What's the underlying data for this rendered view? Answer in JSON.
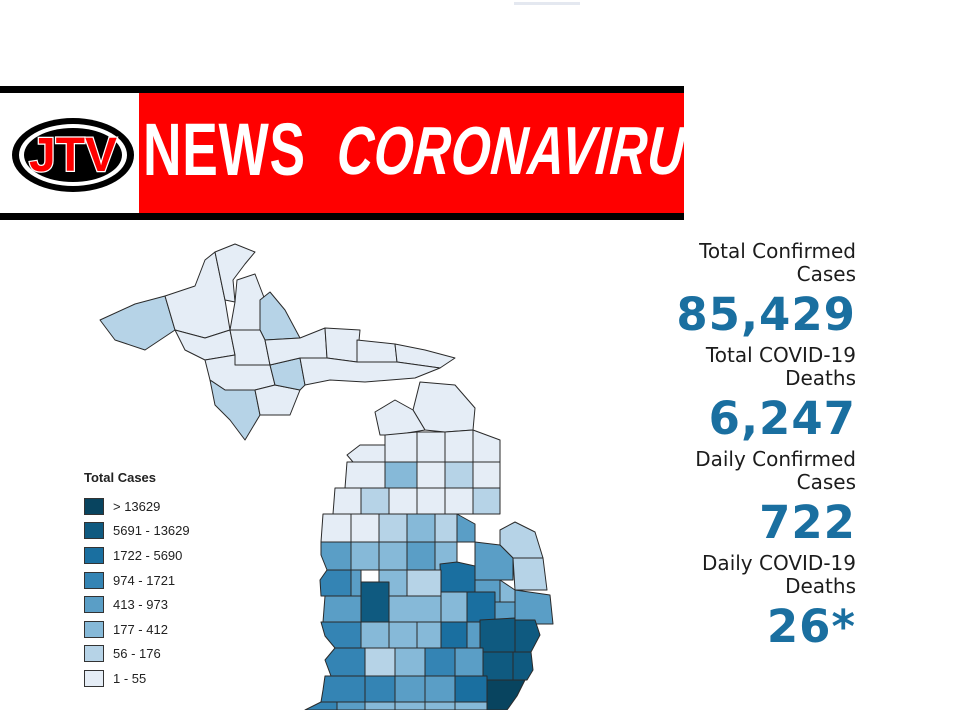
{
  "banner": {
    "logo_text": "JTV",
    "title": "NEWS",
    "subtitle": "CORONAVIRUS",
    "colors": {
      "red": "#ff0000",
      "black": "#000000",
      "white": "#ffffff"
    }
  },
  "legend": {
    "title": "Total Cases",
    "items": [
      {
        "label": "> 13629",
        "color": "#08445f"
      },
      {
        "label": "5691 - 13629",
        "color": "#0f5a80"
      },
      {
        "label": "1722 - 5690",
        "color": "#1a6fa0"
      },
      {
        "label": "974 - 1721",
        "color": "#3484b4"
      },
      {
        "label": "413 - 973",
        "color": "#5a9ec6"
      },
      {
        "label": "177 - 412",
        "color": "#86b9d8"
      },
      {
        "label": "56 - 176",
        "color": "#b6d3e7"
      },
      {
        "label": "1 - 55",
        "color": "#e5edf6"
      }
    ]
  },
  "stats": [
    {
      "label_line1": "Total Confirmed",
      "label_line2": "Cases",
      "value": "85,429"
    },
    {
      "label_line1": "Total COVID-19",
      "label_line2": "Deaths",
      "value": "6,247"
    },
    {
      "label_line1": "Daily Confirmed",
      "label_line2": "Cases",
      "value": "722"
    },
    {
      "label_line1": "Daily COVID-19",
      "label_line2": "Deaths",
      "value": "26*"
    }
  ]
}
